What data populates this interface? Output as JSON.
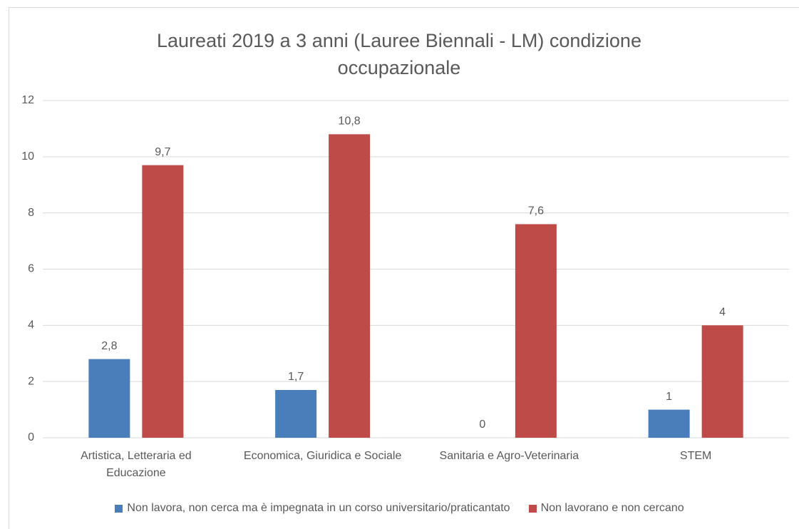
{
  "chart_data": {
    "type": "bar",
    "title": "Laureati 2019 a 3 anni (Lauree Biennali - LM) condizione occupazionale",
    "categories": [
      "Artistica, Letteraria ed Educazione",
      "Economica, Giuridica e Sociale",
      "Sanitaria e Agro-Veterinaria",
      "STEM"
    ],
    "series": [
      {
        "name": "Non lavora, non cerca ma è impegnata in un corso universitario/praticantato",
        "color": "#4a7ebb",
        "values": [
          2.8,
          1.7,
          0,
          1
        ],
        "value_labels": [
          "2,8",
          "1,7",
          "0",
          "1"
        ]
      },
      {
        "name": "Non lavorano e non cercano",
        "color": "#be4b48",
        "values": [
          9.7,
          10.8,
          7.6,
          4
        ],
        "value_labels": [
          "9,7",
          "10,8",
          "7,6",
          "4"
        ]
      }
    ],
    "ylim": [
      0,
      12
    ],
    "yticks": [
      0,
      2,
      4,
      6,
      8,
      10,
      12
    ],
    "grid": true,
    "legend": "bottom"
  }
}
